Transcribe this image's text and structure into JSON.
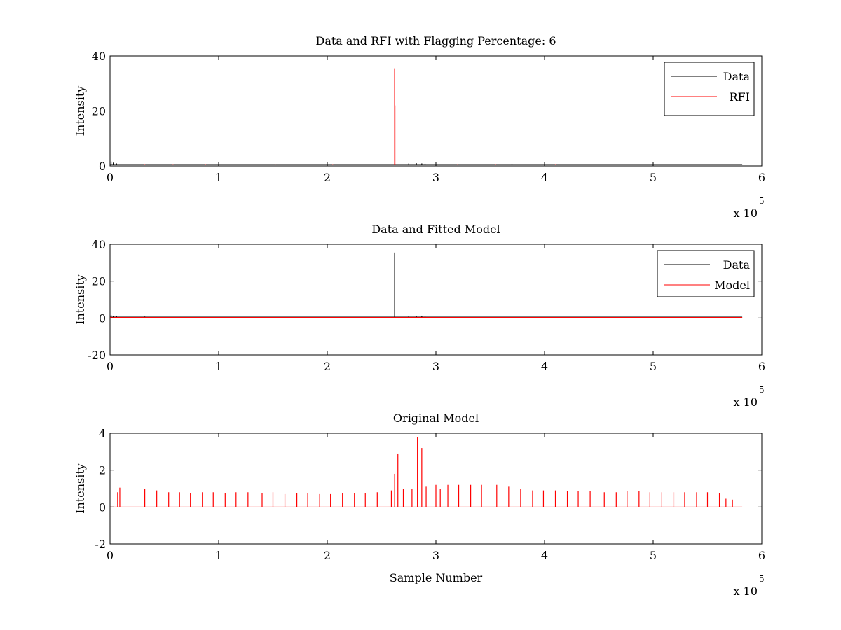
{
  "chart_data": [
    {
      "type": "line",
      "title": "Data and RFI with Flagging Percentage: 6",
      "xlabel": "",
      "ylabel": "Intensity",
      "xlim": [
        0,
        600000
      ],
      "ylim": [
        0,
        40
      ],
      "xticks": [
        0,
        100000,
        200000,
        300000,
        400000,
        500000,
        600000
      ],
      "xtick_labels": [
        "0",
        "1",
        "2",
        "3",
        "4",
        "5",
        "6"
      ],
      "yticks": [
        0,
        20,
        40
      ],
      "ytick_labels": [
        "0",
        "20",
        "40"
      ],
      "x_multiplier_label": "x 10",
      "x_multiplier_exp": "5",
      "grid": false,
      "legend_position": "top-right",
      "series": [
        {
          "name": "Data",
          "color": "#000000",
          "baseline": 0.5,
          "spikes": [
            [
              1000,
              1.6
            ],
            [
              3000,
              1.2
            ],
            [
              6000,
              0.9
            ],
            [
              275000,
              0.9
            ],
            [
              282000,
              1.0
            ],
            [
              287000,
              0.9
            ],
            [
              290000,
              0.8
            ],
            [
              370000,
              0.7
            ]
          ]
        },
        {
          "name": "RFI",
          "color": "#ff0000",
          "baseline": null,
          "spikes": [
            [
              262000,
              35.5
            ],
            [
              262300,
              22.0
            ],
            [
              32000,
              0.6
            ],
            [
              58000,
              0.6
            ],
            [
              88000,
              0.6
            ],
            [
              152000,
              0.6
            ],
            [
              205000,
              0.6
            ],
            [
              320000,
              0.6
            ],
            [
              355000,
              0.6
            ],
            [
              410000,
              0.6
            ]
          ]
        }
      ]
    },
    {
      "type": "line",
      "title": "Data and Fitted Model",
      "xlabel": "",
      "ylabel": "Intensity",
      "xlim": [
        0,
        600000
      ],
      "ylim": [
        -20,
        40
      ],
      "xticks": [
        0,
        100000,
        200000,
        300000,
        400000,
        500000,
        600000
      ],
      "xtick_labels": [
        "0",
        "1",
        "2",
        "3",
        "4",
        "5",
        "6"
      ],
      "yticks": [
        -20,
        0,
        20,
        40
      ],
      "ytick_labels": [
        "-20",
        "0",
        "20",
        "40"
      ],
      "x_multiplier_label": "x 10",
      "x_multiplier_exp": "5",
      "grid": false,
      "legend_position": "top-right",
      "series": [
        {
          "name": "Data",
          "color": "#000000",
          "baseline": 0.5,
          "spikes": [
            [
              1000,
              1.6
            ],
            [
              3000,
              1.2
            ],
            [
              6000,
              1.0
            ],
            [
              32000,
              0.8
            ],
            [
              262000,
              35.5
            ],
            [
              275000,
              1.0
            ],
            [
              282000,
              1.0
            ],
            [
              287000,
              0.9
            ],
            [
              290000,
              0.8
            ],
            [
              320000,
              0.6
            ]
          ]
        },
        {
          "name": "Model",
          "color": "#ff0000",
          "baseline": 0.3,
          "spikes": []
        }
      ]
    },
    {
      "type": "line",
      "title": "Original Model",
      "xlabel": "Sample Number",
      "ylabel": "Intensity",
      "xlim": [
        0,
        600000
      ],
      "ylim": [
        -2,
        4
      ],
      "xticks": [
        0,
        100000,
        200000,
        300000,
        400000,
        500000,
        600000
      ],
      "xtick_labels": [
        "0",
        "1",
        "2",
        "3",
        "4",
        "5",
        "6"
      ],
      "yticks": [
        -2,
        0,
        2,
        4
      ],
      "ytick_labels": [
        "-2",
        "0",
        "2",
        "4"
      ],
      "x_multiplier_label": "x 10",
      "x_multiplier_exp": "5",
      "grid": false,
      "legend_position": "none",
      "series": [
        {
          "color": "#ff0000",
          "baseline": 0,
          "spikes": [
            [
              7000,
              0.8
            ],
            [
              9000,
              1.05
            ],
            [
              32000,
              1.0
            ],
            [
              43000,
              0.9
            ],
            [
              54000,
              0.8
            ],
            [
              64000,
              0.8
            ],
            [
              74000,
              0.75
            ],
            [
              85000,
              0.8
            ],
            [
              95000,
              0.8
            ],
            [
              106000,
              0.75
            ],
            [
              116000,
              0.8
            ],
            [
              127000,
              0.8
            ],
            [
              140000,
              0.75
            ],
            [
              150000,
              0.8
            ],
            [
              161000,
              0.7
            ],
            [
              172000,
              0.75
            ],
            [
              182000,
              0.75
            ],
            [
              193000,
              0.7
            ],
            [
              203000,
              0.7
            ],
            [
              214000,
              0.75
            ],
            [
              225000,
              0.75
            ],
            [
              235000,
              0.75
            ],
            [
              246000,
              0.8
            ],
            [
              259000,
              0.9
            ],
            [
              262000,
              1.8
            ],
            [
              265000,
              2.9
            ],
            [
              270000,
              1.0
            ],
            [
              278000,
              1.0
            ],
            [
              283000,
              3.8
            ],
            [
              287000,
              3.2
            ],
            [
              291000,
              1.1
            ],
            [
              300000,
              1.2
            ],
            [
              304000,
              1.0
            ],
            [
              311000,
              1.2
            ],
            [
              321000,
              1.2
            ],
            [
              332000,
              1.2
            ],
            [
              342000,
              1.2
            ],
            [
              356000,
              1.2
            ],
            [
              367000,
              1.1
            ],
            [
              378000,
              1.0
            ],
            [
              389000,
              0.9
            ],
            [
              399000,
              0.9
            ],
            [
              410000,
              0.9
            ],
            [
              421000,
              0.85
            ],
            [
              431000,
              0.85
            ],
            [
              442000,
              0.85
            ],
            [
              455000,
              0.8
            ],
            [
              466000,
              0.8
            ],
            [
              476000,
              0.85
            ],
            [
              487000,
              0.85
            ],
            [
              497000,
              0.8
            ],
            [
              508000,
              0.8
            ],
            [
              519000,
              0.8
            ],
            [
              529000,
              0.8
            ],
            [
              540000,
              0.8
            ],
            [
              550000,
              0.8
            ],
            [
              561000,
              0.75
            ],
            [
              567000,
              0.45
            ],
            [
              573000,
              0.4
            ]
          ]
        }
      ]
    }
  ]
}
